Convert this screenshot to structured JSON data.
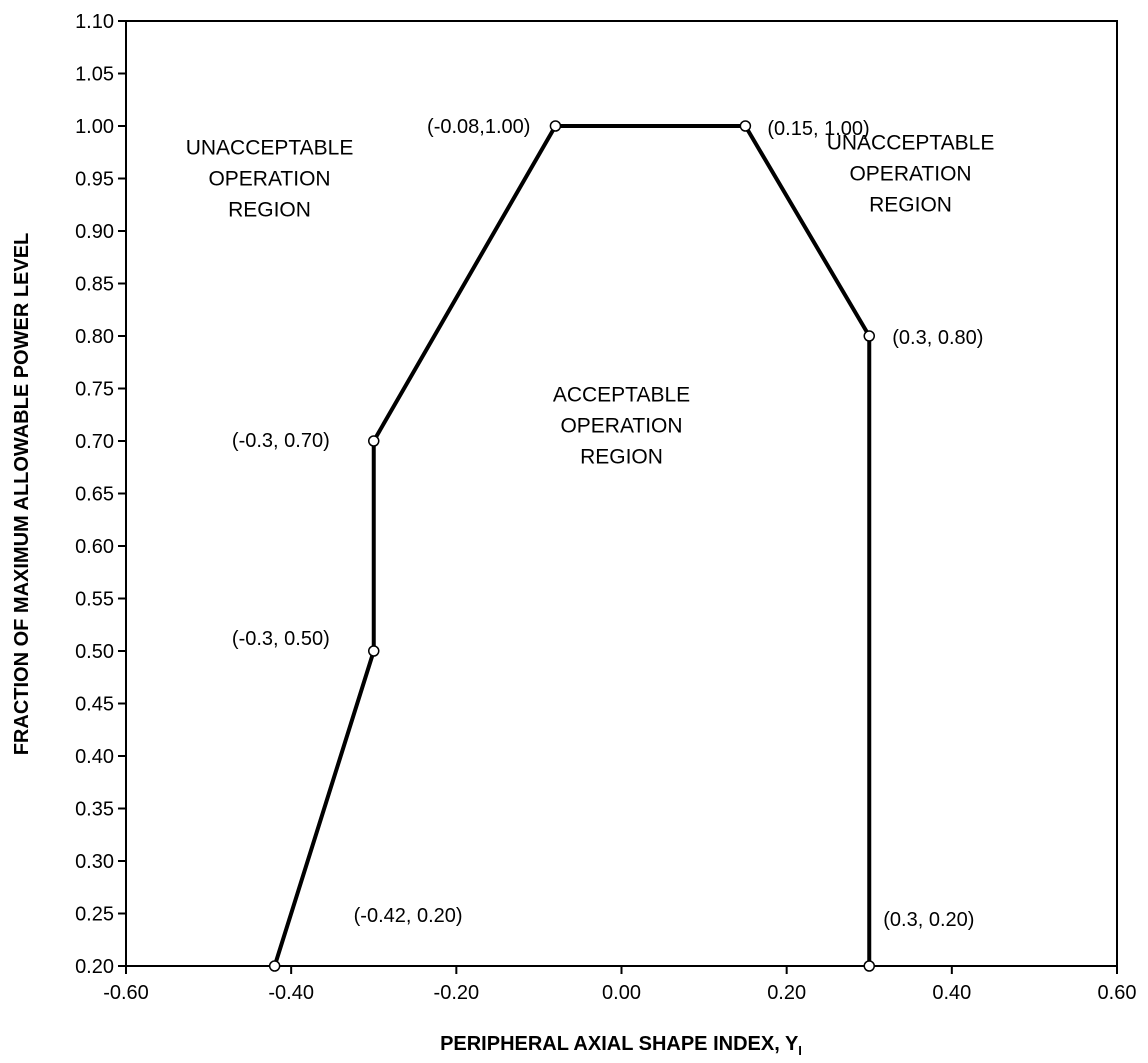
{
  "chart_data": {
    "type": "line",
    "title": "",
    "xlabel": "PERIPHERAL AXIAL SHAPE INDEX, Y",
    "xlabel_subscript": "I",
    "ylabel": "FRACTION OF MAXIMUM ALLOWABLE POWER LEVEL",
    "xlim": [
      -0.6,
      0.6
    ],
    "ylim": [
      0.2,
      1.1
    ],
    "x_ticks": [
      "-0.60",
      "-0.40",
      "-0.20",
      "0.00",
      "0.20",
      "0.40",
      "0.60"
    ],
    "y_ticks": [
      "0.20",
      "0.25",
      "0.30",
      "0.35",
      "0.40",
      "0.45",
      "0.50",
      "0.55",
      "0.60",
      "0.65",
      "0.70",
      "0.75",
      "0.80",
      "0.85",
      "0.90",
      "0.95",
      "1.00",
      "1.05",
      "1.10"
    ],
    "grid": false,
    "legend": "none",
    "series": [
      {
        "x": [
          -0.42,
          -0.3,
          -0.3,
          -0.08,
          0.15,
          0.3,
          0.3
        ],
        "y": [
          0.2,
          0.5,
          0.7,
          1.0,
          1.0,
          0.8,
          0.2
        ]
      }
    ],
    "point_labels": [
      {
        "text": "(-0.42, 0.20)",
        "x": -0.42,
        "y": 0.2,
        "position": "upper-right"
      },
      {
        "text": "(-0.3, 0.50)",
        "x": -0.3,
        "y": 0.5,
        "position": "upper-left"
      },
      {
        "text": "(-0.3, 0.70)",
        "x": -0.3,
        "y": 0.7,
        "position": "left"
      },
      {
        "text": "(-0.08,1.00)",
        "x": -0.08,
        "y": 1.0,
        "position": "left"
      },
      {
        "text": "(0.15, 1.00)",
        "x": 0.15,
        "y": 1.0,
        "position": "right"
      },
      {
        "text": "(0.3, 0.80)",
        "x": 0.3,
        "y": 0.8,
        "position": "right"
      },
      {
        "text": "(0.3, 0.20)",
        "x": 0.3,
        "y": 0.2,
        "position": "upper-right"
      }
    ],
    "region_labels": [
      {
        "lines": [
          "UNACCEPTABLE",
          "OPERATION",
          "REGION"
        ],
        "x": -0.425,
        "y": 0.95
      },
      {
        "lines": [
          "UNACCEPTABLE",
          "OPERATION",
          "REGION"
        ],
        "x": 0.35,
        "y": 0.955
      },
      {
        "lines": [
          "ACCEPTABLE",
          "OPERATION",
          "REGION"
        ],
        "x": 0.0,
        "y": 0.715
      }
    ],
    "colors": {
      "line": "#000000",
      "marker_fill": "#ffffff",
      "text": "#000000"
    }
  }
}
